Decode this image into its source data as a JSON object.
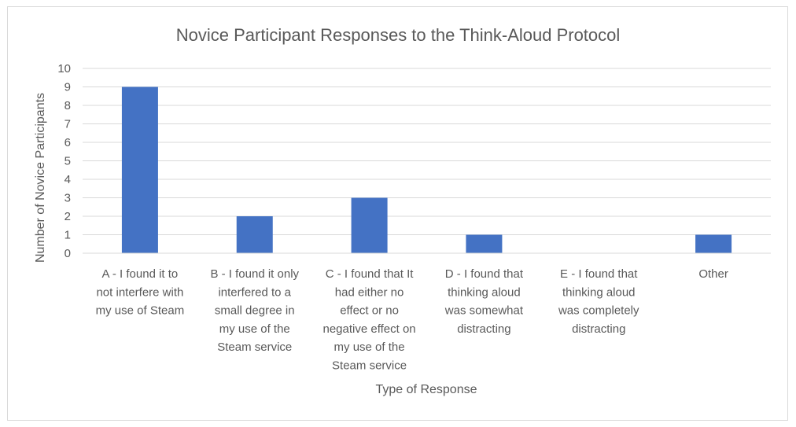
{
  "chart_data": {
    "type": "bar",
    "title": "Novice Participant Responses to the Think-Aloud Protocol",
    "xlabel": "Type of Response",
    "ylabel": "Number of Novice Participants",
    "ylim": [
      0,
      10
    ],
    "yticks": [
      "0",
      "1",
      "2",
      "3",
      "4",
      "5",
      "6",
      "7",
      "8",
      "9",
      "10"
    ],
    "grid": true,
    "legend": "none",
    "bar_color": "#4472c4",
    "categories": [
      [
        "A - I found it to",
        "not interfere with",
        "my use of Steam"
      ],
      [
        "B - I found it only",
        "interfered to a",
        "small degree in",
        "my use of the",
        "Steam service"
      ],
      [
        "C - I found that It",
        "had either no",
        "effect or no",
        "negative effect on",
        "my use of the",
        "Steam service"
      ],
      [
        "D - I found that",
        "thinking aloud",
        "was somewhat",
        "distracting"
      ],
      [
        "E - I found that",
        "thinking aloud",
        "was completely",
        "distracting"
      ],
      [
        "Other"
      ]
    ],
    "values": [
      9,
      2,
      3,
      1,
      0,
      1
    ]
  }
}
